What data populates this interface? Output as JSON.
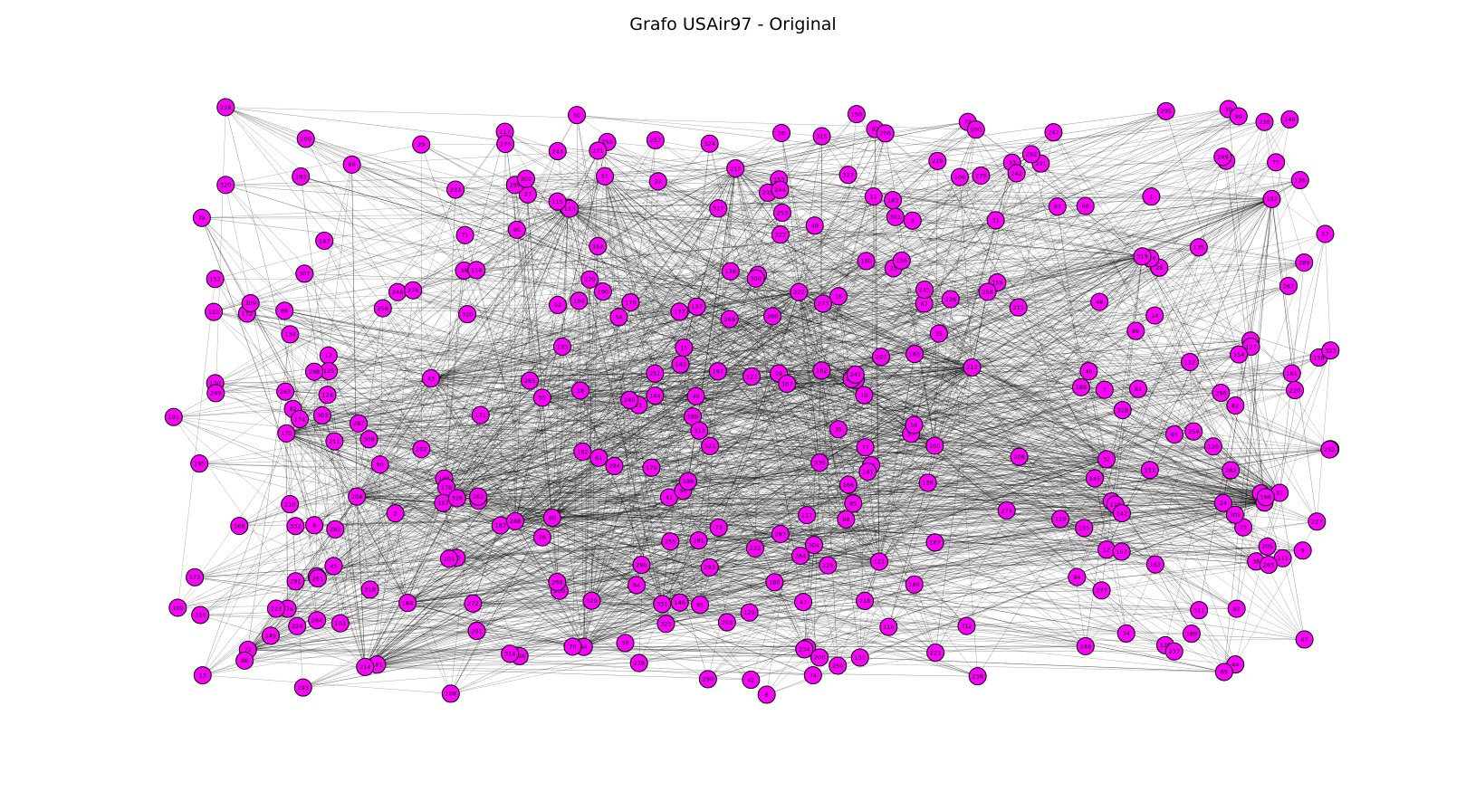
{
  "title": "Grafo USAir97 - Original",
  "colors": {
    "node_fill": "#ff00ff",
    "node_stroke": "#000000",
    "edge": "#000000"
  },
  "nodes": [
    "1",
    "2",
    "3",
    "4",
    "5",
    "6",
    "7",
    "8",
    "9",
    "10",
    "11",
    "12",
    "13",
    "14",
    "15",
    "16",
    "17",
    "18",
    "19",
    "20",
    "21",
    "22",
    "23",
    "24",
    "25",
    "26",
    "27",
    "28",
    "29",
    "30",
    "31",
    "32",
    "33",
    "34",
    "35",
    "36",
    "37",
    "38",
    "39",
    "40",
    "41",
    "42",
    "43",
    "44",
    "45",
    "46",
    "47",
    "48",
    "49",
    "50",
    "51",
    "52",
    "53",
    "54",
    "55",
    "56",
    "57",
    "58",
    "59",
    "60",
    "61",
    "62",
    "63",
    "64",
    "65",
    "66",
    "67",
    "68",
    "69",
    "70",
    "71",
    "72",
    "73",
    "74",
    "75",
    "76",
    "77",
    "78",
    "79",
    "80",
    "81",
    "82",
    "83",
    "84",
    "85",
    "86",
    "87",
    "88",
    "89",
    "90",
    "91",
    "92",
    "93",
    "94",
    "95",
    "96",
    "97",
    "98",
    "99",
    "100",
    "101",
    "102",
    "103",
    "104",
    "105",
    "106",
    "107",
    "108",
    "109",
    "110",
    "111",
    "112",
    "113",
    "114",
    "115",
    "116",
    "117",
    "118",
    "119",
    "120",
    "121",
    "122",
    "123",
    "124",
    "125",
    "126",
    "127",
    "128",
    "129",
    "130",
    "131",
    "132",
    "133",
    "134",
    "135",
    "136",
    "137",
    "138",
    "139",
    "140",
    "141",
    "142",
    "143",
    "144",
    "145",
    "146",
    "147",
    "148",
    "149",
    "150",
    "151",
    "152",
    "153",
    "154",
    "155",
    "156",
    "157",
    "158",
    "159",
    "160",
    "161",
    "162",
    "163",
    "164",
    "165",
    "166",
    "167",
    "168",
    "169",
    "170",
    "171",
    "172",
    "173",
    "174",
    "175",
    "176",
    "177",
    "178",
    "179",
    "180",
    "181",
    "182",
    "183",
    "184",
    "185",
    "186",
    "187",
    "188",
    "189",
    "190",
    "191",
    "192",
    "193",
    "194",
    "195",
    "196",
    "197",
    "198",
    "199",
    "200",
    "201",
    "202",
    "203",
    "204",
    "205",
    "206",
    "207",
    "208",
    "209",
    "210",
    "211",
    "212",
    "213",
    "214",
    "215",
    "216",
    "217",
    "218",
    "219",
    "220",
    "221",
    "222",
    "223",
    "224",
    "225",
    "226",
    "227",
    "228",
    "229",
    "230",
    "231",
    "232",
    "233",
    "234",
    "235",
    "236",
    "237",
    "238",
    "239",
    "240",
    "241",
    "242",
    "243",
    "244",
    "245",
    "246",
    "247",
    "248",
    "249",
    "250",
    "251",
    "252",
    "253",
    "254",
    "255",
    "256",
    "257",
    "258",
    "259",
    "260",
    "261",
    "262",
    "263",
    "264",
    "265",
    "266",
    "267",
    "268",
    "269",
    "270",
    "271",
    "272",
    "273",
    "274",
    "275",
    "276",
    "277",
    "278",
    "279",
    "280",
    "281",
    "282",
    "283",
    "284",
    "285",
    "286",
    "287",
    "288",
    "289",
    "290",
    "291",
    "292",
    "293",
    "294",
    "295",
    "296",
    "297",
    "298",
    "299",
    "300",
    "301",
    "302",
    "303",
    "304",
    "305",
    "306",
    "307",
    "308",
    "309",
    "310",
    "311",
    "312",
    "313",
    "314",
    "315",
    "316",
    "317",
    "318",
    "319",
    "320",
    "321",
    "322",
    "323",
    "324",
    "325",
    "326",
    "327",
    "328",
    "329",
    "330",
    "331",
    "332"
  ]
}
